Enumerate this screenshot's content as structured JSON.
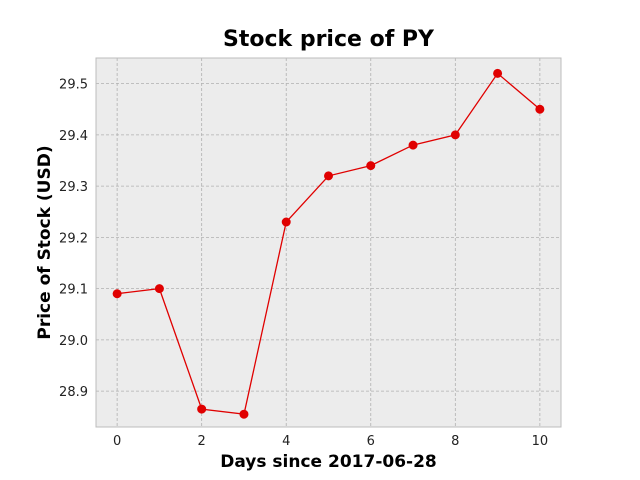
{
  "chart_data": {
    "type": "line",
    "title": "Stock price of PY",
    "xlabel": "Days since 2017-06-28",
    "ylabel": "Price of Stock (USD)",
    "x": [
      0,
      1,
      2,
      3,
      4,
      5,
      6,
      7,
      8,
      9,
      10
    ],
    "series": [
      {
        "values": [
          29.09,
          29.1,
          28.865,
          28.855,
          29.23,
          29.32,
          29.34,
          29.38,
          29.4,
          29.52,
          29.45
        ]
      }
    ],
    "xlim": [
      -0.5,
      10.5
    ],
    "ylim": [
      28.83,
      29.55
    ],
    "xticks": [
      "0",
      "2",
      "4",
      "6",
      "8",
      "10"
    ],
    "yticks": [
      "28.9",
      "29.0",
      "29.1",
      "29.2",
      "29.3",
      "29.4",
      "29.5"
    ],
    "grid": true,
    "colors": {
      "line": "#e00000",
      "plot_background": "#ececec",
      "grid": "#b0b0b0"
    }
  }
}
